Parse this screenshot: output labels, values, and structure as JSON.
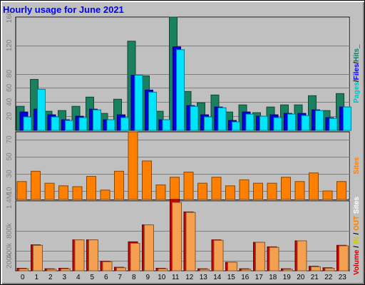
{
  "chart_data": [
    {
      "type": "bar",
      "title": "Hourly usage for June 2021",
      "categories": [
        "0",
        "1",
        "2",
        "3",
        "4",
        "5",
        "6",
        "7",
        "8",
        "9",
        "10",
        "11",
        "12",
        "13",
        "14",
        "15",
        "16",
        "17",
        "18",
        "19",
        "20",
        "21",
        "22",
        "23"
      ],
      "yticks": [
        "20",
        "40",
        "60",
        "80",
        "120",
        "160"
      ],
      "ylim": [
        0,
        160
      ],
      "grid": true,
      "label_parts": [
        {
          "text": "Pages",
          "color": "#00c0c0"
        },
        {
          "text": "/",
          "color": "#000000"
        },
        {
          "text": "Files",
          "color": "#0000ff"
        },
        {
          "text": "/",
          "color": "#000000"
        },
        {
          "text": "Hits",
          "color": "#008060"
        },
        {
          "text": "_",
          "color": "#000000"
        }
      ],
      "series": [
        {
          "color": "#1a8060",
          "values": [
            34,
            72,
            27,
            28,
            34,
            47,
            24,
            44,
            126,
            77,
            27,
            160,
            55,
            39,
            50,
            26,
            36,
            25,
            33,
            36,
            36,
            49,
            28,
            52
          ]
        },
        {
          "color": "#0000e0",
          "values": [
            26,
            30,
            22,
            15,
            20,
            30,
            15,
            22,
            78,
            57,
            15,
            118,
            35,
            22,
            33,
            14,
            26,
            20,
            22,
            24,
            24,
            29,
            18,
            33
          ]
        },
        {
          "color": "#00e5ff",
          "values": [
            19,
            58,
            19,
            14,
            18,
            29,
            15,
            18,
            78,
            54,
            15,
            114,
            34,
            19,
            32,
            12,
            23,
            20,
            18,
            23,
            21,
            28,
            17,
            33
          ]
        }
      ]
    },
    {
      "type": "bar",
      "categories": [
        "0",
        "1",
        "2",
        "3",
        "4",
        "5",
        "6",
        "7",
        "8",
        "9",
        "10",
        "11",
        "12",
        "13",
        "14",
        "15",
        "16",
        "17",
        "18",
        "19",
        "20",
        "21",
        "22",
        "23"
      ],
      "yticks": [
        "10",
        "30",
        "50",
        "70"
      ],
      "ylim": [
        0,
        79
      ],
      "grid": true,
      "label_parts": [
        {
          "text": "Sites",
          "color": "#ff8000"
        }
      ],
      "series": [
        {
          "color": "#ff8000",
          "values": [
            21,
            33,
            19,
            16,
            15,
            27,
            11,
            33,
            79,
            45,
            17,
            26,
            32,
            19,
            26,
            16,
            23,
            19,
            19,
            26,
            21,
            31,
            10,
            21
          ]
        }
      ]
    },
    {
      "type": "bar",
      "categories": [
        "0",
        "1",
        "2",
        "3",
        "4",
        "5",
        "6",
        "7",
        "8",
        "9",
        "10",
        "11",
        "12",
        "13",
        "14",
        "15",
        "16",
        "17",
        "18",
        "19",
        "20",
        "21",
        "22",
        "23"
      ],
      "yticks": [
        "200k",
        "400k",
        "800k",
        "1.4M"
      ],
      "ylim": [
        0,
        1.4
      ],
      "grid": true,
      "label_parts": [
        {
          "text": "Volume",
          "color": "#cc0000"
        },
        {
          "text": " / ",
          "color": "#000000"
        },
        {
          "text": "IN",
          "color": "#cccc00"
        },
        {
          "text": " / ",
          "color": "#000000"
        },
        {
          "text": "OUT",
          "color": "#ff8000"
        },
        {
          "text": " Sites",
          "color": "#ffffff"
        }
      ],
      "series": [
        {
          "color": "#cc0000",
          "values": [
            0.05,
            0.52,
            0.04,
            0.05,
            0.62,
            0.62,
            0.19,
            0.07,
            0.58,
            0.92,
            0.05,
            1.43,
            1.18,
            0.04,
            0.62,
            0.17,
            0.04,
            0.57,
            0.48,
            0.04,
            0.6,
            0.09,
            0.06,
            0.51
          ]
        },
        {
          "color": "#f4a050",
          "values": [
            0.04,
            0.51,
            0.03,
            0.04,
            0.62,
            0.62,
            0.18,
            0.06,
            0.55,
            0.92,
            0.04,
            1.37,
            1.17,
            0.03,
            0.61,
            0.17,
            0.03,
            0.57,
            0.47,
            0.03,
            0.6,
            0.08,
            0.05,
            0.5
          ]
        }
      ]
    }
  ]
}
